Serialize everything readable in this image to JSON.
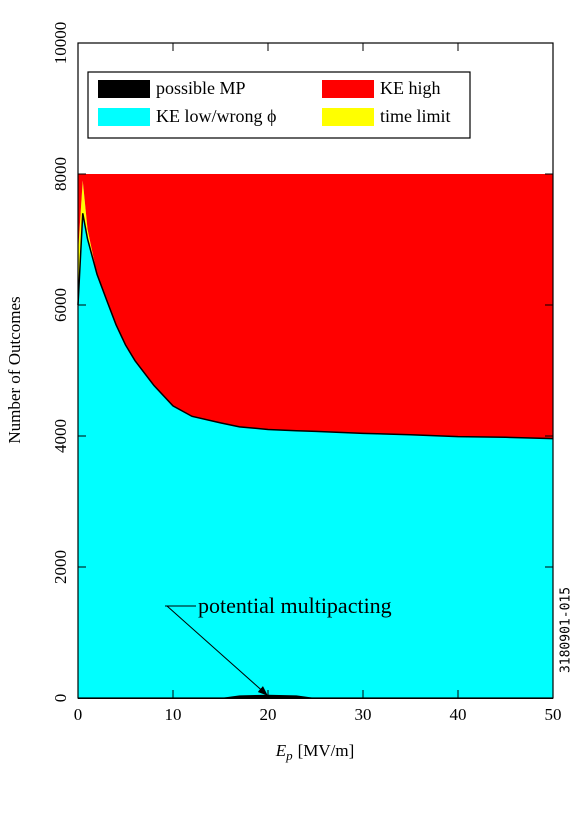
{
  "chart_data": {
    "type": "stacked_area",
    "x_label": [
      "E",
      "p",
      "[MV/m]"
    ],
    "y_label": "Number of Outcomes",
    "annotation": "potential multipacting",
    "figure_id": "3180901-015",
    "x": [
      0,
      0.5,
      1,
      2,
      3,
      4,
      5,
      6,
      8,
      10,
      12,
      15,
      17,
      20,
      23,
      25,
      30,
      35,
      40,
      45,
      50
    ],
    "series": [
      {
        "name": "possible MP",
        "color": "#000000",
        "values": [
          0,
          0,
          0,
          0,
          0,
          0,
          0,
          0,
          0,
          0,
          0,
          0,
          40,
          50,
          40,
          0,
          0,
          0,
          0,
          0,
          0
        ]
      },
      {
        "name": "KE low/wrong ϕ",
        "color": "#00ffff",
        "values": [
          6000,
          7400,
          7010,
          6470,
          6080,
          5700,
          5390,
          5150,
          4770,
          4460,
          4300,
          4200,
          4100,
          4050,
          4040,
          4070,
          4040,
          4020,
          3990,
          3980,
          3960
        ]
      },
      {
        "name": "time limit",
        "color": "#ffff00",
        "values": [
          800,
          500,
          150,
          0,
          0,
          0,
          0,
          0,
          0,
          0,
          0,
          0,
          0,
          0,
          0,
          0,
          0,
          0,
          0,
          0,
          0
        ]
      },
      {
        "name": "KE high",
        "color": "#ff0000",
        "values": [
          1200,
          100,
          840,
          1530,
          1920,
          2300,
          2610,
          2850,
          3230,
          3540,
          3700,
          3800,
          3860,
          3900,
          3920,
          3930,
          3960,
          3980,
          4010,
          4020,
          4040
        ]
      }
    ],
    "xlim": [
      0,
      50
    ],
    "xticks": [
      0,
      10,
      20,
      30,
      40,
      50
    ],
    "ylim": [
      0,
      10000
    ],
    "yticks": [
      0,
      2000,
      4000,
      6000,
      8000,
      10000
    ],
    "legend": "top"
  }
}
